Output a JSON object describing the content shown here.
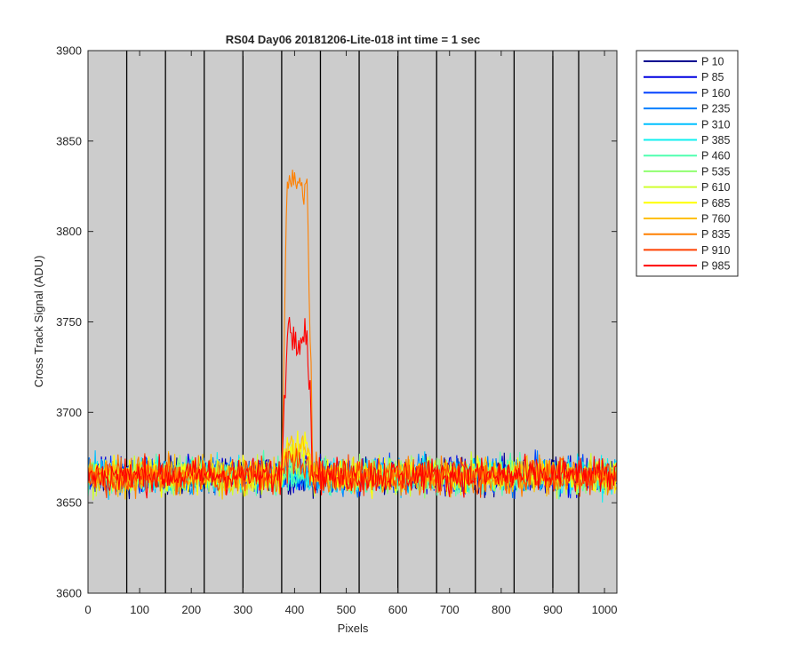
{
  "chart_data": {
    "type": "line",
    "title": "RS04 Day06 20181206-Lite-018 int time = 1 sec",
    "xlabel": "Pixels",
    "ylabel": "Cross Track Signal (ADU)",
    "xlim": [
      0,
      1024
    ],
    "ylim": [
      3600,
      3900
    ],
    "xticks": [
      0,
      100,
      200,
      300,
      400,
      500,
      600,
      700,
      800,
      900,
      1000
    ],
    "yticks": [
      3600,
      3650,
      3700,
      3750,
      3800,
      3850,
      3900
    ],
    "background_color": "#cccccc",
    "vertical_lines_x": [
      75,
      150,
      225,
      300,
      375,
      450,
      525,
      600,
      675,
      750,
      825,
      900,
      950
    ],
    "grid": false,
    "legend_position": "outside-right",
    "baseline_level": 3665,
    "baseline_noise_range": [
      3632,
      3692
    ],
    "peak_region_x": [
      375,
      435
    ],
    "series": [
      {
        "name": "P 10",
        "color": "#000090",
        "peak_level": 3665
      },
      {
        "name": "P 85",
        "color": "#0000e0",
        "peak_level": 3665
      },
      {
        "name": "P 160",
        "color": "#0040ff",
        "peak_level": 3665
      },
      {
        "name": "P 235",
        "color": "#0080ff",
        "peak_level": 3665
      },
      {
        "name": "P 310",
        "color": "#00c0ff",
        "peak_level": 3665
      },
      {
        "name": "P 385",
        "color": "#10f0f0",
        "peak_level": 3665
      },
      {
        "name": "P 460",
        "color": "#50ffb0",
        "peak_level": 3665
      },
      {
        "name": "P 535",
        "color": "#90ff70",
        "peak_level": 3670
      },
      {
        "name": "P 610",
        "color": "#d0ff30",
        "peak_level": 3675
      },
      {
        "name": "P 685",
        "color": "#ffff00",
        "peak_level": 3680
      },
      {
        "name": "P 760",
        "color": "#ffc000",
        "peak_level": 3680
      },
      {
        "name": "P 835",
        "color": "#ff8000",
        "peak_level": 3825
      },
      {
        "name": "P 910",
        "color": "#ff4000",
        "peak_level": 3672
      },
      {
        "name": "P 985",
        "color": "#ff0000",
        "peak_level": 3745
      }
    ]
  }
}
